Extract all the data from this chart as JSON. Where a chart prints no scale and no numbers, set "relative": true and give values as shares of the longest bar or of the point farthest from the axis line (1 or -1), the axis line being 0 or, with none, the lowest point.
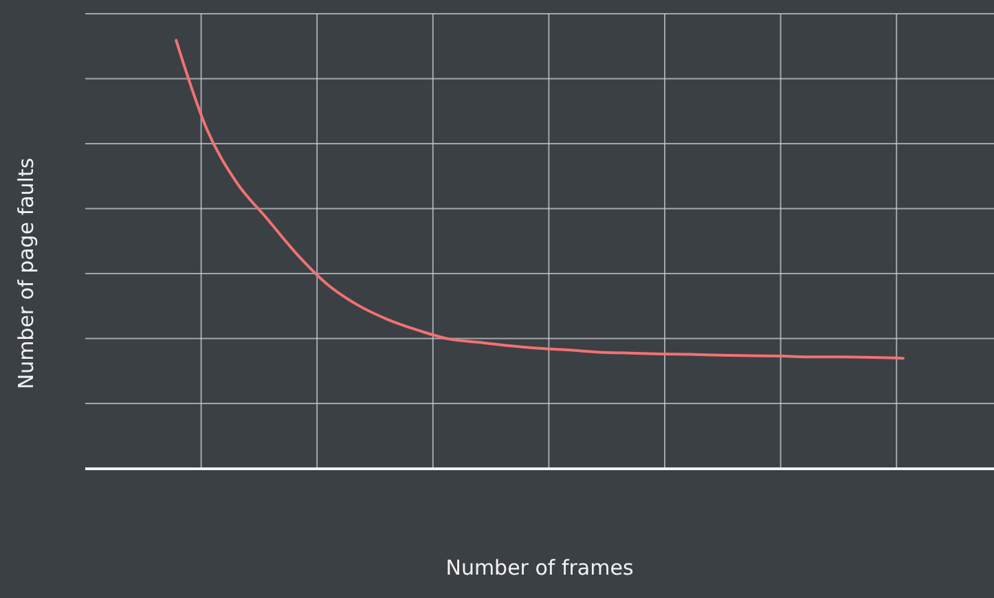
{
  "chart_data": {
    "type": "line",
    "xlabel": "Number of frames",
    "ylabel": "Number of page faults",
    "relative": true,
    "grid": true,
    "marker": "none",
    "line_style": "solid",
    "categories": [
      null,
      null,
      null,
      null,
      null,
      null,
      null,
      null,
      null,
      null,
      null,
      null,
      null,
      null,
      null,
      null,
      null,
      null,
      null,
      null,
      null,
      null,
      null,
      null,
      null,
      null,
      null,
      null,
      null,
      null,
      null
    ],
    "series": [
      {
        "color": "#f27272",
        "values": [
          null,
          null,
          null,
          1.0,
          0.795,
          0.668,
          0.584,
          0.5,
          0.43,
          0.382,
          0.348,
          0.323,
          0.303,
          0.295,
          0.287,
          0.281,
          0.277,
          0.272,
          0.27,
          0.268,
          0.267,
          0.265,
          0.264,
          0.263,
          0.261,
          0.261,
          0.26,
          0.258,
          null,
          null,
          null
        ]
      }
    ]
  }
}
